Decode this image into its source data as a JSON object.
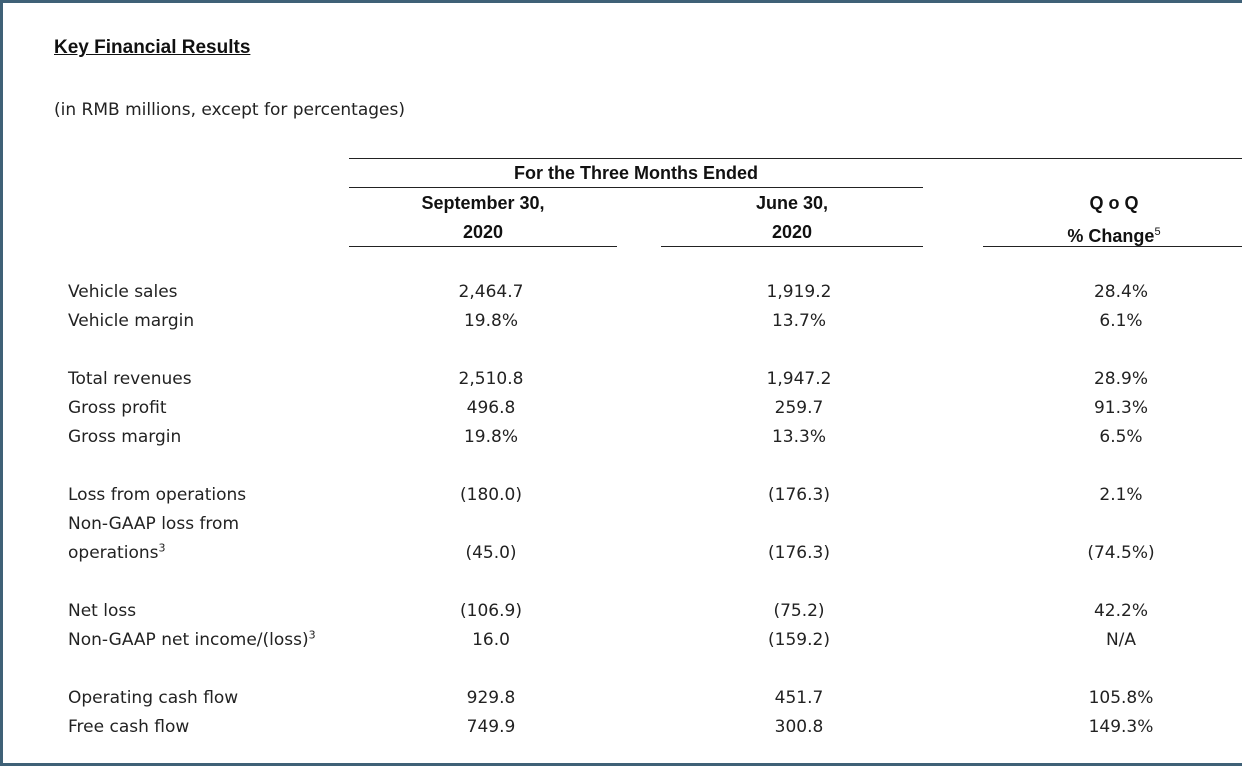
{
  "title": "Key Financial Results",
  "subtitle": "(in RMB millions, except for percentages)",
  "header": {
    "group": "For the Three Months Ended",
    "col1_line1": "September 30,",
    "col1_line2": "2020",
    "col2_line1": "June 30,",
    "col2_line2": "2020",
    "col3_line1": "Q o Q",
    "col3_line2": "% Change",
    "col3_footnote": "5"
  },
  "rows": [
    {
      "label": "Vehicle sales",
      "v1": "2,464.7",
      "v2": "1,919.2",
      "v3": "28.4%"
    },
    {
      "label": "Vehicle margin",
      "v1": "19.8%",
      "v2": "13.7%",
      "v3": "6.1%"
    },
    {
      "label": "Total revenues",
      "v1": "2,510.8",
      "v2": "1,947.2",
      "v3": "28.9%"
    },
    {
      "label": "Gross profit",
      "v1": "496.8",
      "v2": "259.7",
      "v3": "91.3%"
    },
    {
      "label": "Gross margin",
      "v1": "19.8%",
      "v2": "13.3%",
      "v3": "6.5%"
    },
    {
      "label": "Loss from operations",
      "v1": "(180.0)",
      "v2": "(176.3)",
      "v3": "2.1%"
    },
    {
      "label_line1": "Non-GAAP loss from",
      "label_line2": "operations",
      "footnote": "3",
      "v1": "(45.0)",
      "v2": "(176.3)",
      "v3": "(74.5%)"
    },
    {
      "label": "Net loss",
      "v1": "(106.9)",
      "v2": "(75.2)",
      "v3": "42.2%"
    },
    {
      "label": "Non-GAAP net income/(loss)",
      "footnote": "3",
      "v1": "16.0",
      "v2": "(159.2)",
      "v3": "N/A"
    },
    {
      "label": "Operating cash flow",
      "v1": "929.8",
      "v2": "451.7",
      "v3": "105.8%"
    },
    {
      "label": "Free cash flow",
      "v1": "749.9",
      "v2": "300.8",
      "v3": "149.3%"
    }
  ]
}
